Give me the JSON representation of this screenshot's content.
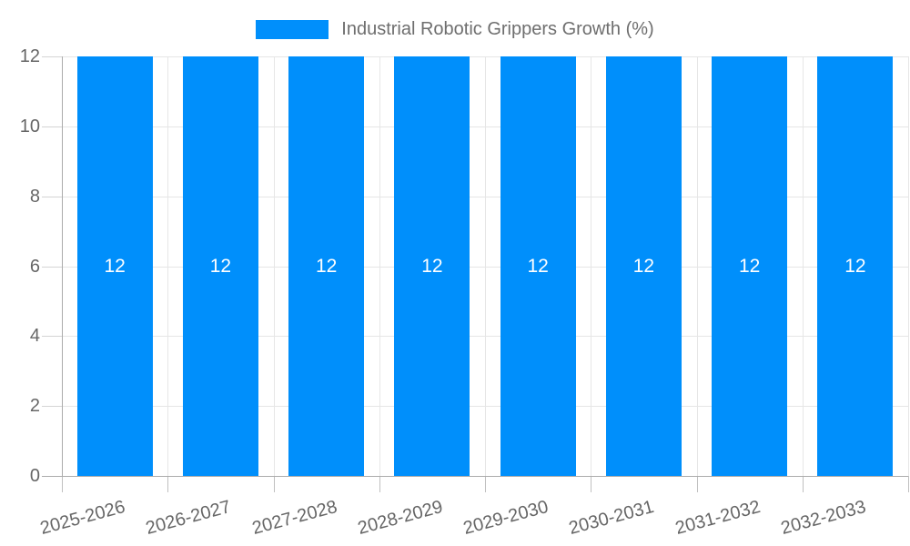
{
  "legend": {
    "label": "Industrial Robotic Grippers Growth (%)"
  },
  "chart_data": {
    "type": "bar",
    "title": "Industrial Robotic Grippers Growth (%)",
    "categories": [
      "2025-2026",
      "2026-2027",
      "2027-2028",
      "2028-2029",
      "2029-2030",
      "2030-2031",
      "2031-2032",
      "2032-2033"
    ],
    "values": [
      12,
      12,
      12,
      12,
      12,
      12,
      12,
      12
    ],
    "data_labels": [
      "12",
      "12",
      "12",
      "12",
      "12",
      "12",
      "12",
      "12"
    ],
    "xlabel": "",
    "ylabel": "",
    "ylim": [
      0,
      12
    ],
    "yticks": [
      0,
      2,
      4,
      6,
      8,
      10,
      12
    ],
    "legend_position": "top-center",
    "grid": true,
    "colors": {
      "bar": "#008FFB",
      "data_label": "#FFFFFF",
      "axis_text": "#666666",
      "legend_text": "#6E6E6E",
      "gridline": "#E6E6E6",
      "axis_line": "#ABABAB",
      "tick": "#C0C0C0",
      "background": "#FFFFFF"
    }
  }
}
